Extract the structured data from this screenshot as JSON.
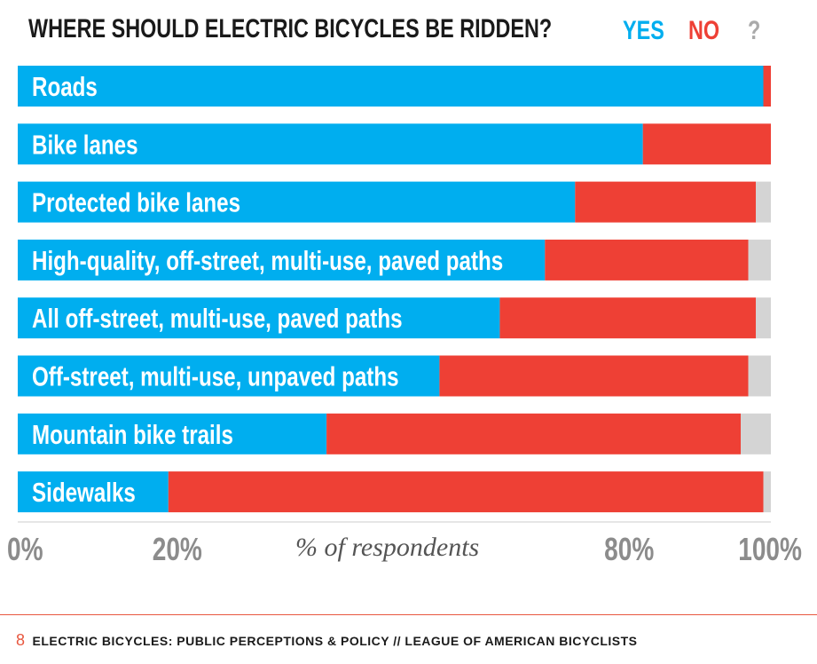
{
  "colors": {
    "yes": "#00aeef",
    "no": "#ee4035",
    "unknown": "#d4d4d4"
  },
  "footer": {
    "page_number": "8",
    "text": "ELECTRIC BICYCLES: PUBLIC PERCEPTIONS & POLICY // LEAGUE OF AMERICAN BICYCLISTS"
  },
  "chart_data": {
    "type": "bar",
    "orientation": "horizontal",
    "stacked": true,
    "title": "WHERE SHOULD ELECTRIC BICYCLES BE RIDDEN?",
    "xlabel": "% of respondents",
    "xlim": [
      0,
      100
    ],
    "x_ticks": [
      "0%",
      "20%",
      "80%",
      "100%"
    ],
    "x_tick_values": [
      0,
      20,
      80,
      100
    ],
    "legend": [
      "YES",
      "NO",
      "?"
    ],
    "legend_position": "top-right",
    "categories": [
      "Roads",
      "Bike lanes",
      "Protected bike lanes",
      "High-quality, off-street, multi-use, paved paths",
      "All off-street, multi-use, paved paths",
      "Off-street, multi-use, unpaved paths",
      "Mountain bike trails",
      "Sidewalks"
    ],
    "series": [
      {
        "name": "YES",
        "values": [
          99,
          83,
          74,
          70,
          64,
          56,
          41,
          20
        ]
      },
      {
        "name": "NO",
        "values": [
          1,
          17,
          24,
          27,
          34,
          41,
          55,
          79
        ]
      },
      {
        "name": "?",
        "values": [
          0,
          0,
          2,
          3,
          2,
          3,
          4,
          1
        ]
      }
    ]
  }
}
